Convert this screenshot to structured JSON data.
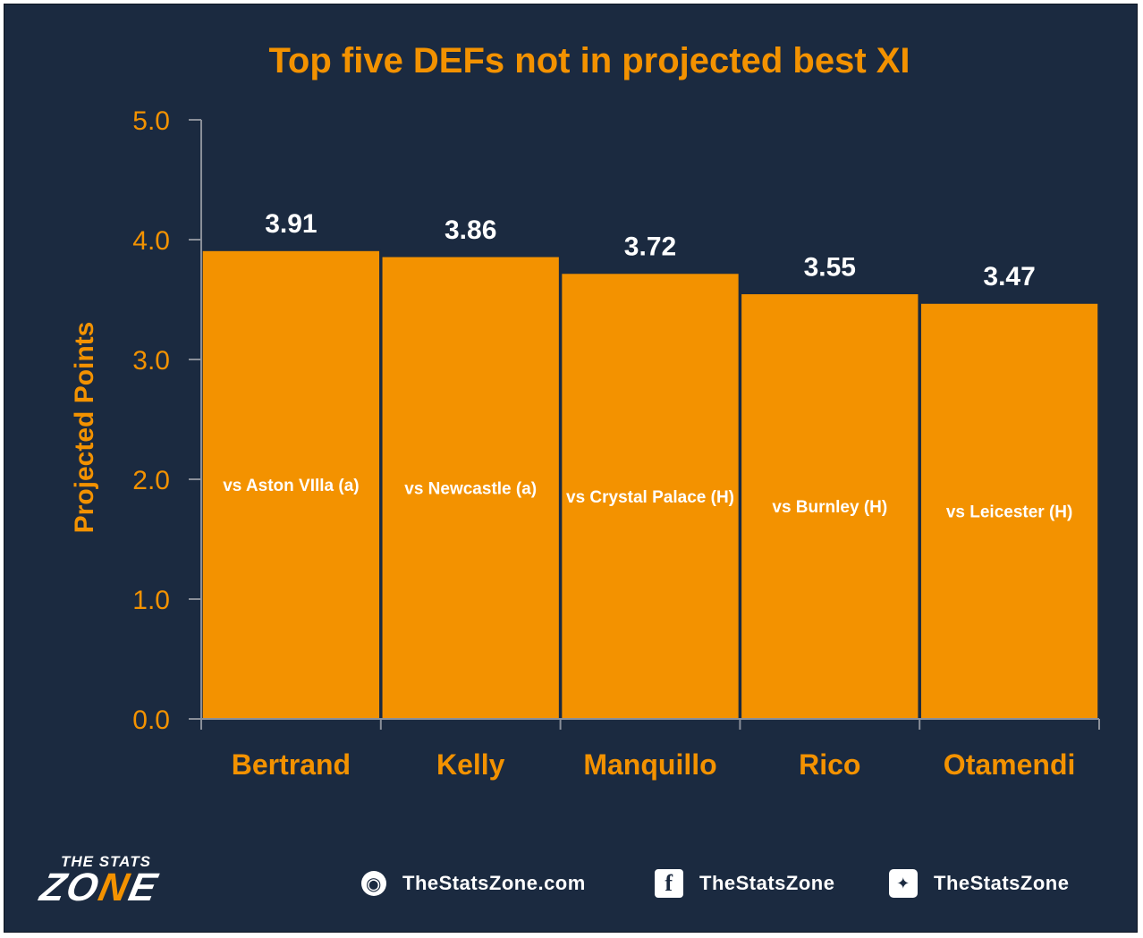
{
  "chart_data": {
    "type": "bar",
    "title": "Top five DEFs not in projected best XI",
    "xlabel": "",
    "ylabel": "Projected Points",
    "ylim": [
      0,
      5
    ],
    "yticks": [
      "0.0",
      "1.0",
      "2.0",
      "3.0",
      "4.0",
      "5.0"
    ],
    "categories": [
      "Bertrand",
      "Kelly",
      "Manquillo",
      "Rico",
      "Otamendi"
    ],
    "values": [
      3.91,
      3.86,
      3.72,
      3.55,
      3.47
    ],
    "value_labels": [
      "3.91",
      "3.86",
      "3.72",
      "3.55",
      "3.47"
    ],
    "fixtures": [
      "vs Aston VIlla (a)",
      "vs Newcastle (a)",
      "vs Crystal Palace (H)",
      "vs Burnley (H)",
      "vs Leicester (H)"
    ],
    "grid": false,
    "colors": {
      "bar": "#f39200",
      "background": "#1b2a40",
      "text": "#ffffff",
      "accent": "#f39200"
    }
  },
  "footer": {
    "brand_top": "THE STATS",
    "brand_main_a": "ZO",
    "brand_main_o": "N",
    "brand_main_b": "E",
    "website": "TheStatsZone.com",
    "facebook": "TheStatsZone",
    "twitter": "TheStatsZone",
    "icons": [
      "globe-icon",
      "facebook-icon",
      "twitter-icon"
    ]
  }
}
